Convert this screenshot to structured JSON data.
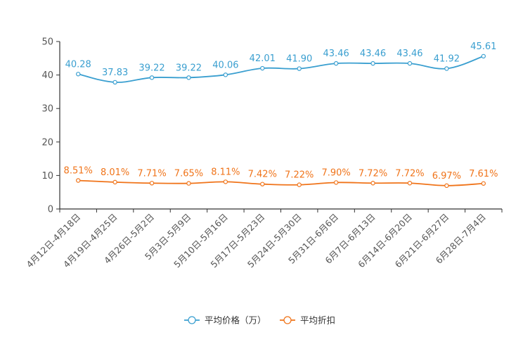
{
  "chart_data": {
    "type": "line",
    "title": "",
    "xlabel": "",
    "ylabel": "",
    "ylim": [
      0,
      50
    ],
    "yticks": [
      0,
      10,
      20,
      30,
      40,
      50
    ],
    "grid": false,
    "legend_position": "bottom-center",
    "categories": [
      "4月12日-4月18日",
      "4月19日-4月25日",
      "4月26日-5月2日",
      "5月3日-5月9日",
      "5月10日-5月16日",
      "5月17日-5月23日",
      "5月24日-5月30日",
      "5月31日-6月6日",
      "6月7日-6月13日",
      "6月14日-6月20日",
      "6月21日-6月27日",
      "6月28日-7月4日"
    ],
    "series": [
      {
        "name": "平均价格（万）",
        "color": "#3a9fd0",
        "values": [
          40.28,
          37.83,
          39.22,
          39.22,
          40.06,
          42.01,
          41.9,
          43.46,
          43.46,
          43.46,
          41.92,
          45.61
        ],
        "labels": [
          "40.28",
          "37.83",
          "39.22",
          "39.22",
          "40.06",
          "42.01",
          "41.90",
          "43.46",
          "43.46",
          "43.46",
          "41.92",
          "45.61"
        ]
      },
      {
        "name": "平均折扣",
        "color": "#f0741a",
        "values": [
          8.51,
          8.01,
          7.71,
          7.65,
          8.11,
          7.42,
          7.22,
          7.9,
          7.72,
          7.72,
          6.97,
          7.61
        ],
        "labels": [
          "8.51%",
          "8.01%",
          "7.71%",
          "7.65%",
          "8.11%",
          "7.42%",
          "7.22%",
          "7.90%",
          "7.72%",
          "7.72%",
          "6.97%",
          "7.61%"
        ]
      }
    ]
  }
}
